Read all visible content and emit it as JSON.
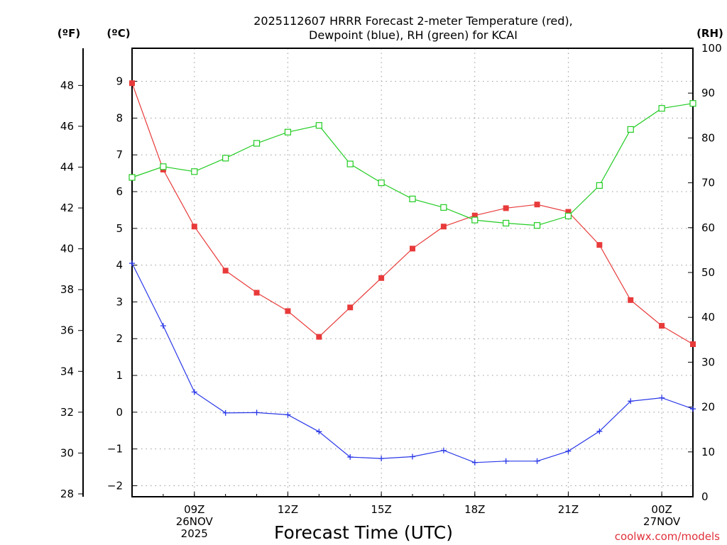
{
  "chart_data": {
    "type": "line",
    "title_line1": "2025112607 HRRR Forecast 2-meter Temperature (red),",
    "title_line2": "Dewpoint (blue), RH (green) for KCAI",
    "unit_f": "(ºF)",
    "unit_c": "(ºC)",
    "unit_rh": "(RH)",
    "xlabel": "Forecast Time (UTC)",
    "credit": "coolwx.com/models",
    "x_hours": [
      7,
      8,
      9,
      10,
      11,
      12,
      13,
      14,
      15,
      16,
      17,
      18,
      19,
      20,
      21,
      22,
      23,
      24,
      25
    ],
    "xlim": [
      7,
      25
    ],
    "x_ticks": [
      {
        "hour": 9,
        "lines": [
          "09Z",
          "26NOV",
          "2025"
        ]
      },
      {
        "hour": 12,
        "lines": [
          "12Z"
        ]
      },
      {
        "hour": 15,
        "lines": [
          "15Z"
        ]
      },
      {
        "hour": 18,
        "lines": [
          "18Z"
        ]
      },
      {
        "hour": 21,
        "lines": [
          "21Z"
        ]
      },
      {
        "hour": 24,
        "lines": [
          "00Z",
          "27NOV"
        ]
      }
    ],
    "c_axis": {
      "ylim": [
        -2.3,
        9.9
      ],
      "ticks": [
        -2,
        -1,
        0,
        1,
        2,
        3,
        4,
        5,
        6,
        7,
        8,
        9
      ]
    },
    "f_axis": {
      "ticks": [
        28,
        30,
        32,
        34,
        36,
        38,
        40,
        42,
        44,
        46,
        48
      ]
    },
    "rh_axis": {
      "ylim": [
        0,
        100
      ],
      "ticks": [
        0,
        10,
        20,
        30,
        40,
        50,
        60,
        70,
        80,
        90,
        100
      ]
    },
    "series": [
      {
        "name": "2-meter Temperature",
        "unit": "C",
        "color": "#e83a3a",
        "marker": "filled-square",
        "values": [
          8.95,
          6.6,
          5.05,
          3.85,
          3.25,
          2.75,
          2.05,
          2.85,
          3.65,
          4.45,
          5.05,
          5.35,
          5.55,
          5.65,
          5.45,
          4.55,
          3.05,
          2.35,
          1.85
        ]
      },
      {
        "name": "Dewpoint",
        "unit": "C",
        "color": "#2a38e8",
        "marker": "plus",
        "values": [
          4.05,
          2.35,
          0.55,
          -0.02,
          -0.01,
          -0.07,
          -0.53,
          -1.22,
          -1.26,
          -1.21,
          -1.04,
          -1.37,
          -1.33,
          -1.33,
          -1.06,
          -0.52,
          0.3,
          0.39,
          0.09
        ]
      },
      {
        "name": "RH",
        "unit": "%",
        "color": "#22cc22",
        "marker": "open-square",
        "values": [
          71.2,
          73.6,
          72.5,
          75.5,
          78.8,
          81.3,
          82.8,
          74.2,
          70.0,
          66.4,
          64.5,
          61.7,
          61.0,
          60.5,
          62.6,
          69.4,
          81.9,
          86.6,
          87.7
        ]
      }
    ]
  }
}
